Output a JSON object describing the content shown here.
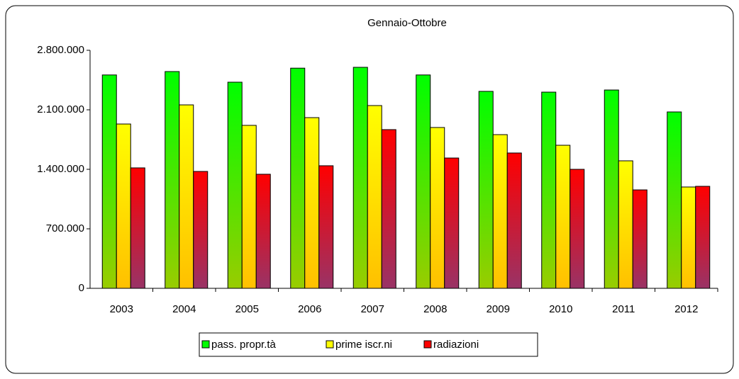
{
  "chart_data": {
    "type": "bar",
    "title": "Gennaio-Ottobre",
    "categories": [
      "2003",
      "2004",
      "2005",
      "2006",
      "2007",
      "2008",
      "2009",
      "2010",
      "2011",
      "2012"
    ],
    "series": [
      {
        "name": "pass. propr.tà",
        "color": "#00ff00",
        "values": [
          2510000,
          2550000,
          2425000,
          2590000,
          2600000,
          2510000,
          2317000,
          2308000,
          2333000,
          2075000
        ]
      },
      {
        "name": "prime iscr.ni",
        "color": "#ffff00",
        "values": [
          1933000,
          2158000,
          1917000,
          2008000,
          2150000,
          1892000,
          1808000,
          1683000,
          1500000,
          1192000
        ]
      },
      {
        "name": "radiazioni",
        "color": "#ff0000",
        "values": [
          1417000,
          1375000,
          1342000,
          1442000,
          1867000,
          1533000,
          1592000,
          1400000,
          1158000,
          1200000
        ]
      }
    ],
    "ylim": [
      0,
      2800000
    ],
    "yticks": [
      0,
      {
        "value": 700000,
        "label": "700.000"
      },
      {
        "value": 1400000,
        "label": "1.400.000"
      },
      {
        "value": 2100000,
        "label": "2.100.000"
      },
      {
        "value": 2800000,
        "label": "2.800.000"
      }
    ],
    "legend": "bottom"
  }
}
